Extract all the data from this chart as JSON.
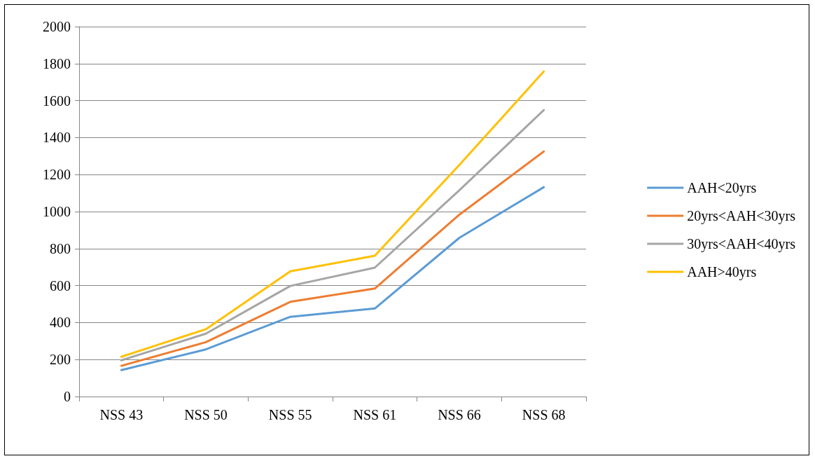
{
  "chart_data": {
    "type": "line",
    "categories": [
      "NSS 43",
      "NSS 50",
      "NSS 55",
      "NSS 61",
      "NSS 66",
      "NSS 68"
    ],
    "series": [
      {
        "name": "AAH<20yrs",
        "color": "#5b9bd5",
        "values": [
          143,
          255,
          431,
          476,
          858,
          1132
        ]
      },
      {
        "name": "20yrs<AAH<30yrs",
        "color": "#ed7d31",
        "values": [
          166,
          294,
          512,
          584,
          983,
          1325
        ]
      },
      {
        "name": "30yrs<AAH<40yrs",
        "color": "#a5a5a5",
        "values": [
          196,
          340,
          598,
          697,
          1115,
          1549
        ]
      },
      {
        "name": "AAH>40yrs",
        "color": "#ffc000",
        "values": [
          215,
          364,
          677,
          761,
          1252,
          1758
        ]
      }
    ],
    "ylim": [
      0,
      2000
    ],
    "yticks": [
      0,
      200,
      400,
      600,
      800,
      1000,
      1200,
      1400,
      1600,
      1800,
      2000
    ],
    "grid": "y",
    "legend": "right",
    "marker": "none",
    "line_style": "solid"
  }
}
